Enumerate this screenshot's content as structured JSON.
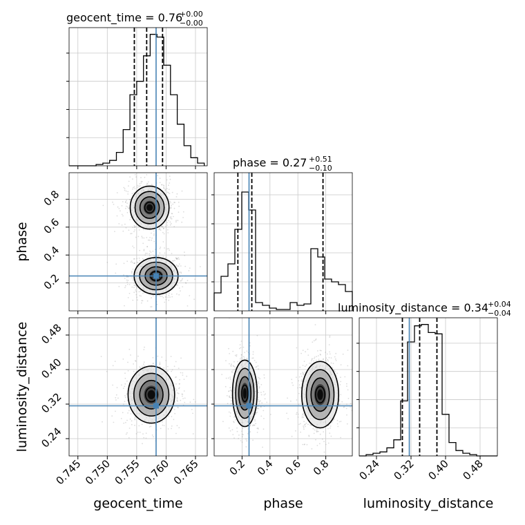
{
  "chart_data": {
    "type": "corner",
    "parameters": [
      "geocent_time",
      "phase",
      "luminosity_distance"
    ],
    "truths": {
      "geocent_time": 0.7583,
      "phase": 0.25,
      "luminosity_distance": 0.316
    },
    "diagonal": [
      {
        "param": "geocent_time",
        "title": {
          "name": "geocent_time",
          "value": "0.76",
          "upper": "+0.00",
          "lower": "−0.00"
        },
        "range": [
          0.7435,
          0.767
        ],
        "hist_edges_start": 0.7435,
        "bin_width": 0.00115,
        "hist_values": [
          0,
          0,
          0,
          0,
          0.01,
          0.02,
          0.04,
          0.1,
          0.27,
          0.53,
          0.63,
          0.82,
          0.98,
          0.96,
          0.75,
          0.53,
          0.31,
          0.15,
          0.06,
          0.02
        ],
        "quantiles": [
          0.7546,
          0.7567,
          0.7594
        ],
        "ylim": [
          0,
          1.03
        ]
      },
      {
        "param": "phase",
        "title": {
          "name": "phase",
          "value": "0.27",
          "upper": "+0.51",
          "lower": "−0.10"
        },
        "range": [
          0.0,
          0.99
        ],
        "hist_edges_start": 0.0,
        "bin_width": 0.0495,
        "hist_values": [
          0.13,
          0.25,
          0.34,
          0.59,
          0.86,
          0.73,
          0.06,
          0.04,
          0.02,
          0.01,
          0.01,
          0.06,
          0.04,
          0.05,
          0.45,
          0.39,
          0.23,
          0.21,
          0.19,
          0.14
        ],
        "quantiles": [
          0.17,
          0.27,
          0.78
        ],
        "ylim": [
          0,
          1.0
        ]
      },
      {
        "param": "luminosity_distance",
        "title": {
          "name": "luminosity_distance",
          "value": "0.34",
          "upper": "+0.04",
          "lower": "−0.04"
        },
        "range": [
          0.2,
          0.52
        ],
        "hist_edges_start": 0.2,
        "bin_width": 0.016,
        "hist_values": [
          0,
          0.01,
          0.02,
          0.03,
          0.06,
          0.12,
          0.41,
          0.85,
          0.97,
          0.98,
          0.92,
          0.91,
          0.31,
          0.1,
          0.04,
          0.02,
          0.01,
          0,
          0,
          0
        ],
        "quantiles": [
          0.3,
          0.34,
          0.38
        ],
        "ylim": [
          0,
          1.03
        ]
      }
    ],
    "panels": [
      {
        "row": 1,
        "col": 0,
        "x_param": "geocent_time",
        "y_param": "phase",
        "modes": [
          {
            "cx": 0.7583,
            "cy": 0.25,
            "sx": 0.0017,
            "sy": 0.06
          },
          {
            "cx": 0.7572,
            "cy": 0.74,
            "sx": 0.0015,
            "sy": 0.07
          }
        ]
      },
      {
        "row": 2,
        "col": 0,
        "x_param": "geocent_time",
        "y_param": "luminosity_distance",
        "modes": [
          {
            "cx": 0.7575,
            "cy": 0.342,
            "sx": 0.0018,
            "sy": 0.03
          }
        ]
      },
      {
        "row": 2,
        "col": 1,
        "x_param": "phase",
        "y_param": "luminosity_distance",
        "modes": [
          {
            "cx": 0.22,
            "cy": 0.345,
            "sx": 0.04,
            "sy": 0.035
          },
          {
            "cx": 0.76,
            "cy": 0.342,
            "sx": 0.06,
            "sy": 0.035
          }
        ]
      }
    ],
    "ticks": {
      "geocent_time": {
        "values": [
          0.745,
          0.75,
          0.755,
          0.76,
          0.765
        ],
        "labels": [
          "0.745",
          "0.750",
          "0.755",
          "0.760",
          "0.765"
        ]
      },
      "phase_x": {
        "values": [
          0.2,
          0.4,
          0.6,
          0.8
        ],
        "labels": [
          "0.2",
          "0.4",
          "0.6",
          "0.8"
        ]
      },
      "phase_y": {
        "values": [
          0.2,
          0.4,
          0.6,
          0.8
        ],
        "labels": [
          "0.2",
          "0.4",
          "0.6",
          "0.8"
        ]
      },
      "luminosity_distance": {
        "values": [
          0.24,
          0.32,
          0.4,
          0.48
        ],
        "labels": [
          "0.24",
          "0.32",
          "0.40",
          "0.48"
        ]
      }
    },
    "axis_labels": {
      "x": [
        "geocent_time",
        "phase",
        "luminosity_distance"
      ],
      "y": [
        "phase",
        "luminosity_distance"
      ]
    },
    "ranges": {
      "geocent_time": [
        0.7435,
        0.767
      ],
      "phase": [
        0.0,
        0.99
      ],
      "luminosity_distance": [
        0.2,
        0.52
      ]
    },
    "grid": true,
    "colors": {
      "truth": "#4682b4",
      "hist": "#000000",
      "grid": "#c8c8c8",
      "points": "#9a9a9a"
    }
  }
}
